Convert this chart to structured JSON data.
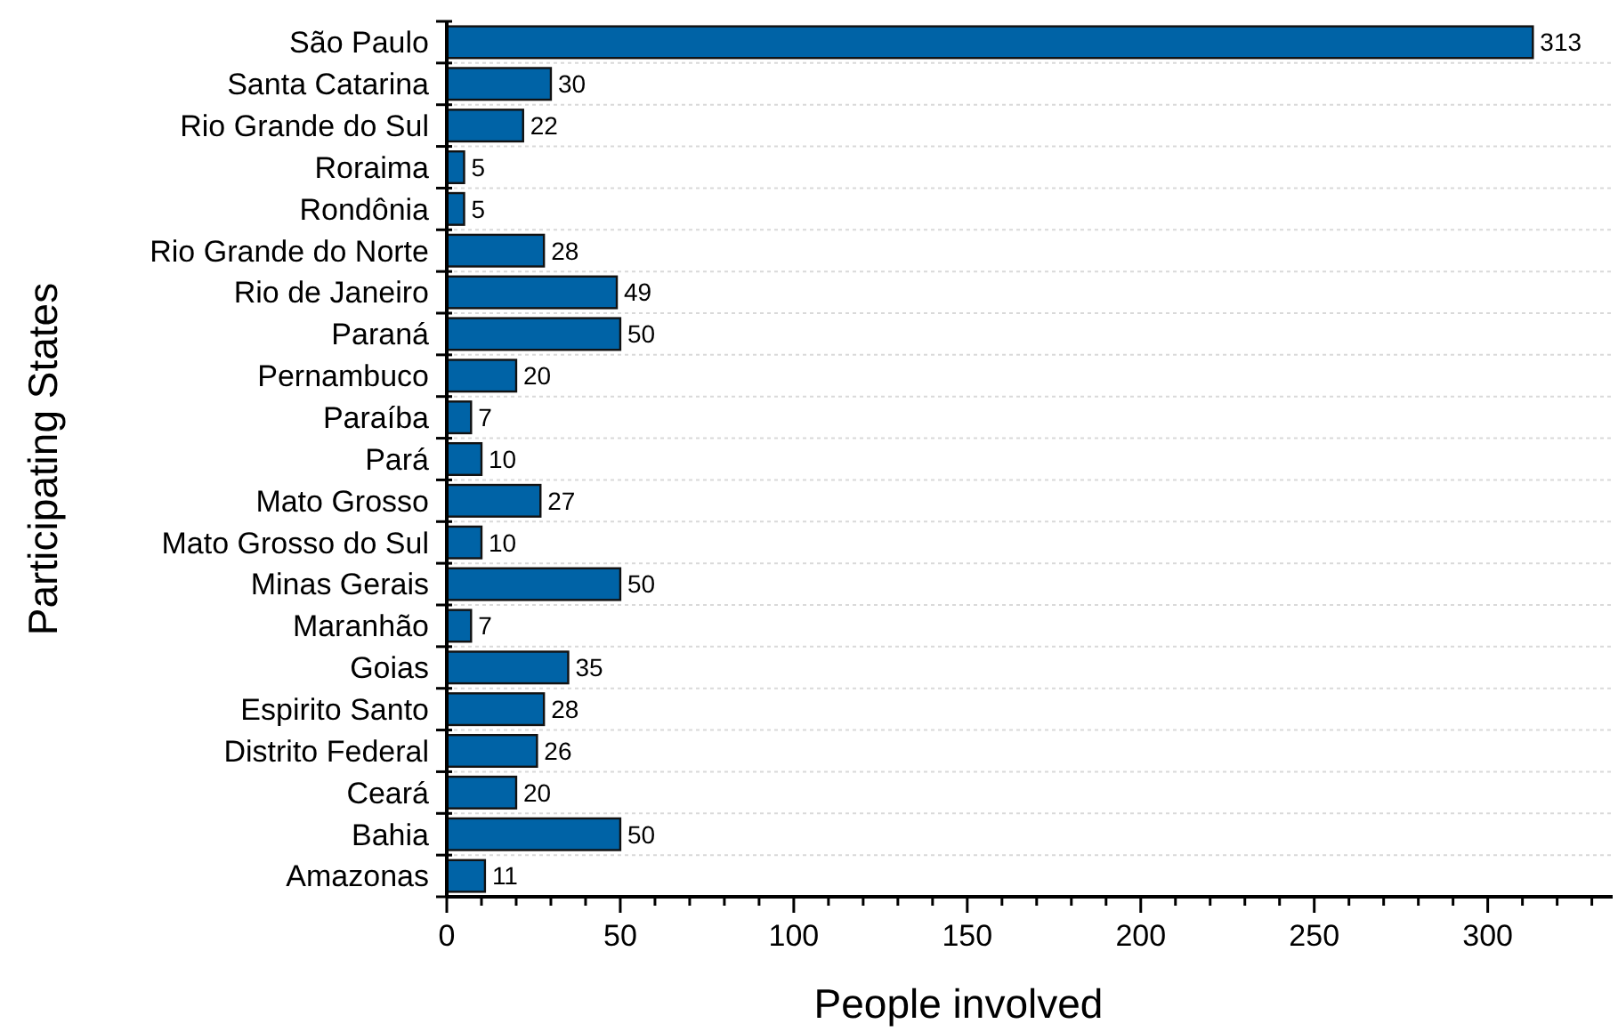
{
  "chart_data": {
    "type": "bar",
    "orientation": "horizontal",
    "xlabel": "People involved",
    "ylabel": "Participating States",
    "categories": [
      "São Paulo",
      "Santa Catarina",
      "Rio Grande do Sul",
      "Roraima",
      "Rondônia",
      "Rio Grande do Norte",
      "Rio de Janeiro",
      "Paraná",
      "Pernambuco",
      "Paraíba",
      "Pará",
      "Mato Grosso",
      "Mato Grosso do Sul",
      "Minas Gerais",
      "Maranhão",
      "Goias",
      "Espirito Santo",
      "Distrito Federal",
      "Ceará",
      "Bahia",
      "Amazonas"
    ],
    "values": [
      313,
      30,
      22,
      5,
      5,
      28,
      49,
      50,
      20,
      7,
      10,
      27,
      10,
      50,
      7,
      35,
      28,
      26,
      20,
      50,
      11
    ],
    "color": "#0063a6",
    "data_labels": true,
    "grid": "y",
    "xlim": [
      0,
      336
    ],
    "xticks": [
      0,
      {
        "value": 10,
        "label": null
      },
      {
        "value": 20,
        "label": null
      },
      {
        "value": 30,
        "label": null
      },
      {
        "value": 40,
        "label": null
      },
      50,
      {
        "value": 60,
        "label": null
      },
      {
        "value": 70,
        "label": null
      },
      {
        "value": 80,
        "label": null
      },
      {
        "value": 90,
        "label": null
      },
      100,
      {
        "value": 110,
        "label": null
      },
      {
        "value": 120,
        "label": null
      },
      {
        "value": 130,
        "label": null
      },
      {
        "value": 140,
        "label": null
      },
      150,
      {
        "value": 160,
        "label": null
      },
      {
        "value": 170,
        "label": null
      },
      {
        "value": 180,
        "label": null
      },
      {
        "value": 190,
        "label": null
      },
      200,
      {
        "value": 210,
        "label": null
      },
      {
        "value": 220,
        "label": null
      },
      {
        "value": 230,
        "label": null
      },
      {
        "value": 240,
        "label": null
      },
      250,
      {
        "value": 260,
        "label": null
      },
      {
        "value": 270,
        "label": null
      },
      {
        "value": 280,
        "label": null
      },
      {
        "value": 290,
        "label": null
      },
      300,
      {
        "value": 310,
        "label": null
      },
      {
        "value": 320,
        "label": null
      },
      {
        "value": 330,
        "label": null
      }
    ]
  }
}
